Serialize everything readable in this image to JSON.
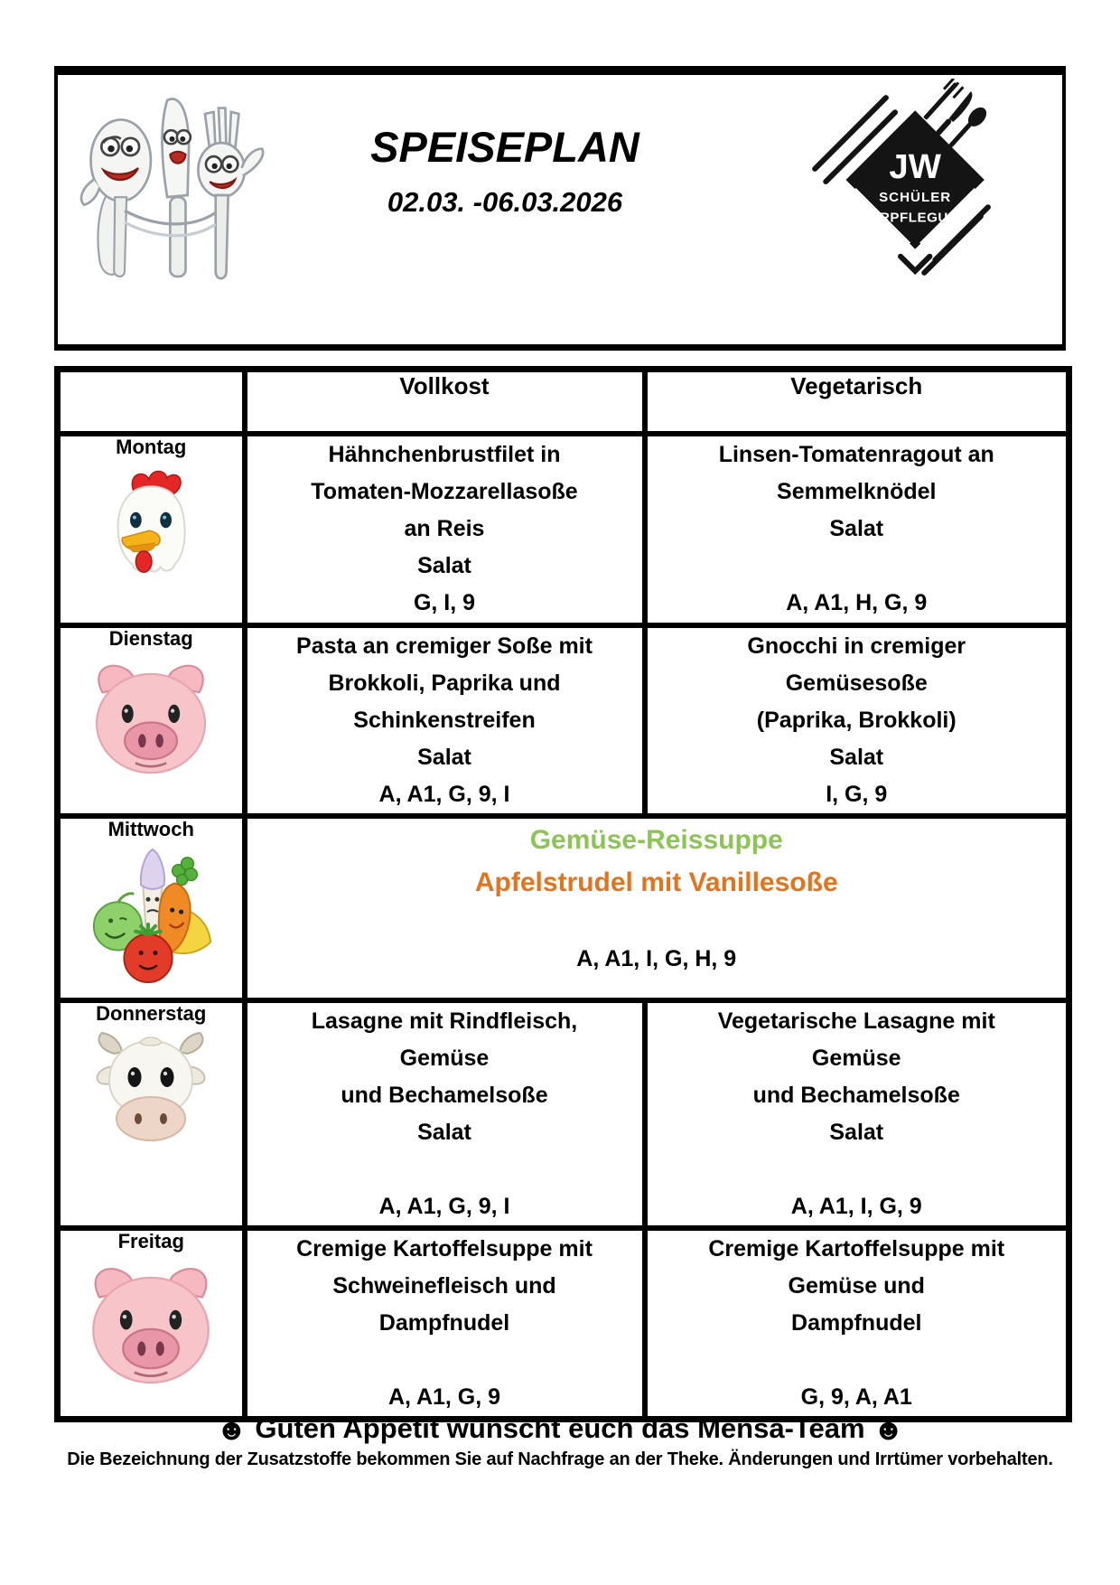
{
  "header": {
    "title": "SPEISEPLAN",
    "date_range": "02.03. -06.03.2026",
    "mascot_icon": "cutlery-cartoon",
    "logo": {
      "line1": "JW",
      "line2": "SCHÜLER",
      "line3": "VERPFLEGUNG"
    }
  },
  "table": {
    "columns": [
      "Vollkost",
      "Vegetarisch"
    ],
    "rows": [
      {
        "day": "Montag",
        "icon": "chicken-face",
        "vollkost_lines": [
          "Hähnchenbrustfilet in",
          "Tomaten-Mozzarellasoße",
          "an Reis",
          "Salat",
          "G, I, 9"
        ],
        "vegetarisch_lines": [
          "Linsen-Tomatenragout an",
          "Semmelknödel",
          "Salat",
          "",
          "A, A1, H, G, 9"
        ]
      },
      {
        "day": "Dienstag",
        "icon": "pig-face",
        "vollkost_lines": [
          "Pasta an cremiger Soße mit",
          "Brokkoli, Paprika und",
          "Schinkenstreifen",
          "Salat",
          "A, A1, G, 9, I"
        ],
        "vegetarisch_lines": [
          "Gnocchi in cremiger",
          "Gemüsesoße",
          "(Paprika, Brokkoli)",
          "Salat",
          "I, G, 9"
        ]
      },
      {
        "day": "Mittwoch",
        "icon": "vegetables",
        "menu_lines": [
          {
            "text": "Gemüse-Reissuppe",
            "color": "green"
          },
          {
            "text": "Apfelstrudel mit Vanillesoße",
            "color": "orange"
          },
          {
            "text": ""
          },
          {
            "text": "A, A1, I, G, H, 9"
          }
        ]
      },
      {
        "day": "Donnerstag",
        "icon": "cow-face",
        "vollkost_lines": [
          "Lasagne mit Rindfleisch,",
          "Gemüse",
          "und Bechamelsoße",
          "Salat",
          "",
          "A, A1, G, 9, I"
        ],
        "vegetarisch_lines": [
          "Vegetarische Lasagne mit",
          "Gemüse",
          "und Bechamelsoße",
          "Salat",
          "",
          "A, A1, I, G, 9"
        ]
      },
      {
        "day": "Freitag",
        "icon": "pig-face",
        "vollkost_lines": [
          "Cremige Kartoffelsuppe mit",
          "Schweinefleisch und",
          "Dampfnudel",
          "",
          "A, A1, G, 9"
        ],
        "vegetarisch_lines": [
          "Cremige Kartoffelsuppe mit",
          "Gemüse und",
          "Dampfnudel",
          "",
          "G, 9, A, A1"
        ]
      }
    ]
  },
  "footer": {
    "smiley_left": "☻",
    "message": "Guten Appetit wünscht euch das Mensa-Team",
    "smiley_right": "☻",
    "disclaimer": "Die Bezeichnung der Zusatzstoffe bekommen Sie auf Nachfrage an der Theke. Änderungen und Irrtümer vorbehalten."
  },
  "colors": {
    "green": "#8cc455",
    "orange": "#e4731d"
  }
}
